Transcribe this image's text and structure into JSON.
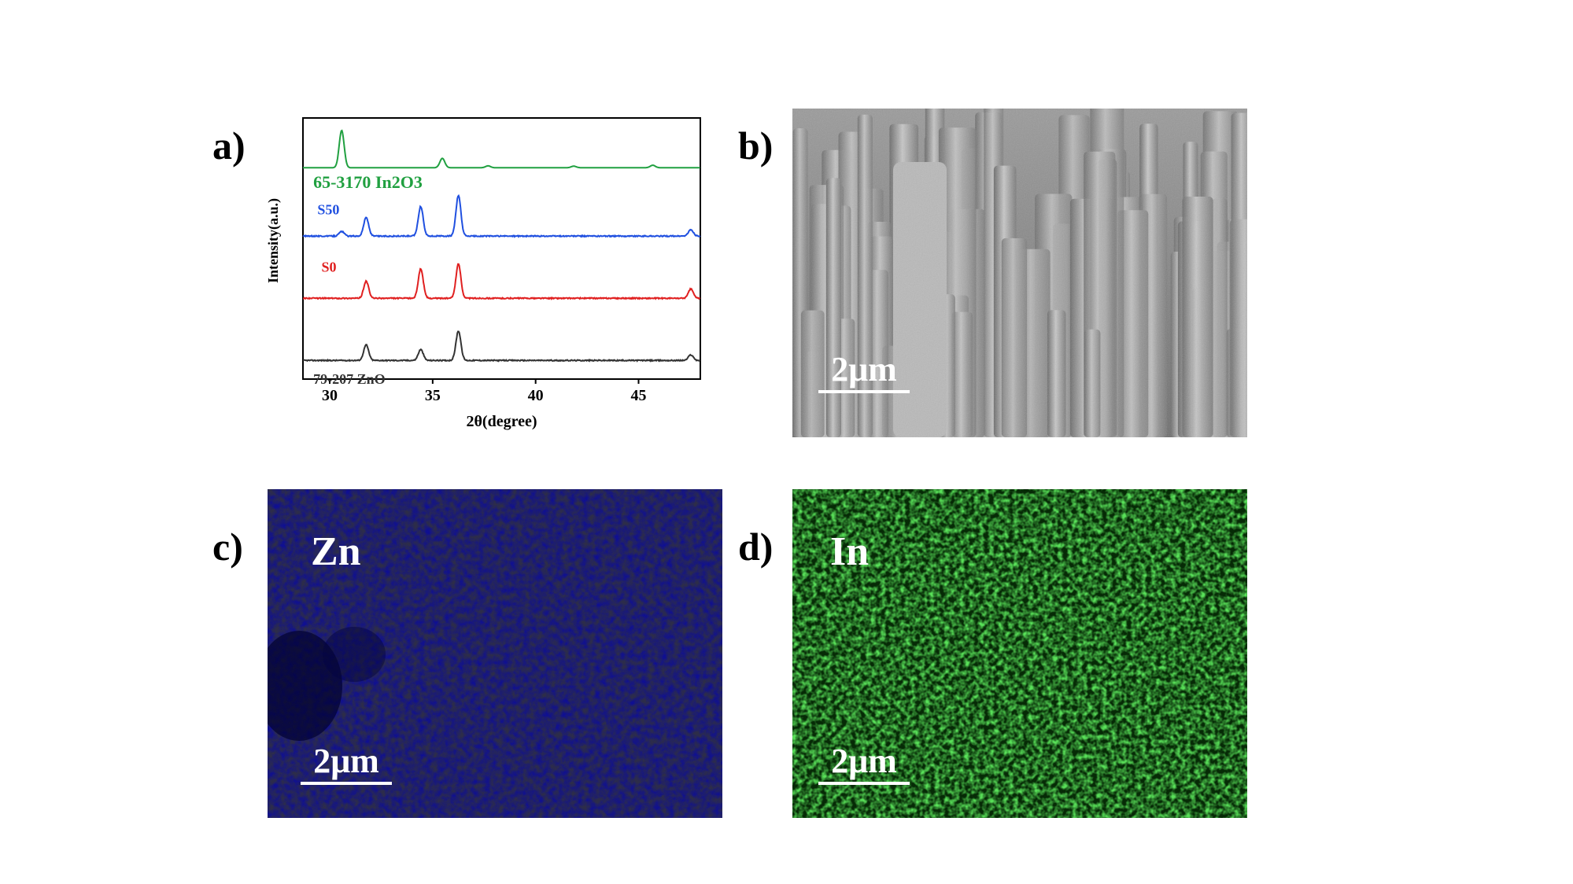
{
  "panels": {
    "a": {
      "letter": "a)"
    },
    "b": {
      "letter": "b)",
      "scale_bar": "2μm"
    },
    "c": {
      "letter": "c)",
      "element_label": "Zn",
      "scale_bar": "2μm",
      "map_color": "#1010c8"
    },
    "d": {
      "letter": "d)",
      "element_label": "In",
      "scale_bar": "2μm",
      "map_color": "#20b020"
    }
  },
  "chart_data": {
    "type": "line",
    "xlabel": "2θ(degree)",
    "ylabel": "Intensity(a.u.)",
    "xlim": [
      28.7,
      48
    ],
    "xticks": [
      30,
      35,
      40,
      45
    ],
    "grid": false,
    "series": [
      {
        "name": "79-207 ZnO",
        "color": "#333333",
        "baseline": 0,
        "peaks": [
          [
            31.77,
            0.5
          ],
          [
            34.42,
            0.35
          ],
          [
            36.25,
            0.95
          ],
          [
            47.54,
            0.18
          ]
        ]
      },
      {
        "name": "S0",
        "color": "#e02020",
        "baseline": 2.0,
        "peaks": [
          [
            31.77,
            0.55
          ],
          [
            34.42,
            0.95
          ],
          [
            36.25,
            1.1
          ],
          [
            47.54,
            0.3
          ]
        ]
      },
      {
        "name": "S50",
        "color": "#2050e0",
        "baseline": 4.0,
        "peaks": [
          [
            30.58,
            0.15
          ],
          [
            31.77,
            0.6
          ],
          [
            34.42,
            0.95
          ],
          [
            36.25,
            1.3
          ],
          [
            47.54,
            0.2
          ]
        ]
      },
      {
        "name": "65-3170 In2O3",
        "color": "#20a040",
        "baseline": 6.2,
        "peaks": [
          [
            30.58,
            1.2
          ],
          [
            35.47,
            0.3
          ],
          [
            37.69,
            0.06
          ],
          [
            41.85,
            0.05
          ],
          [
            45.69,
            0.08
          ]
        ]
      }
    ]
  }
}
